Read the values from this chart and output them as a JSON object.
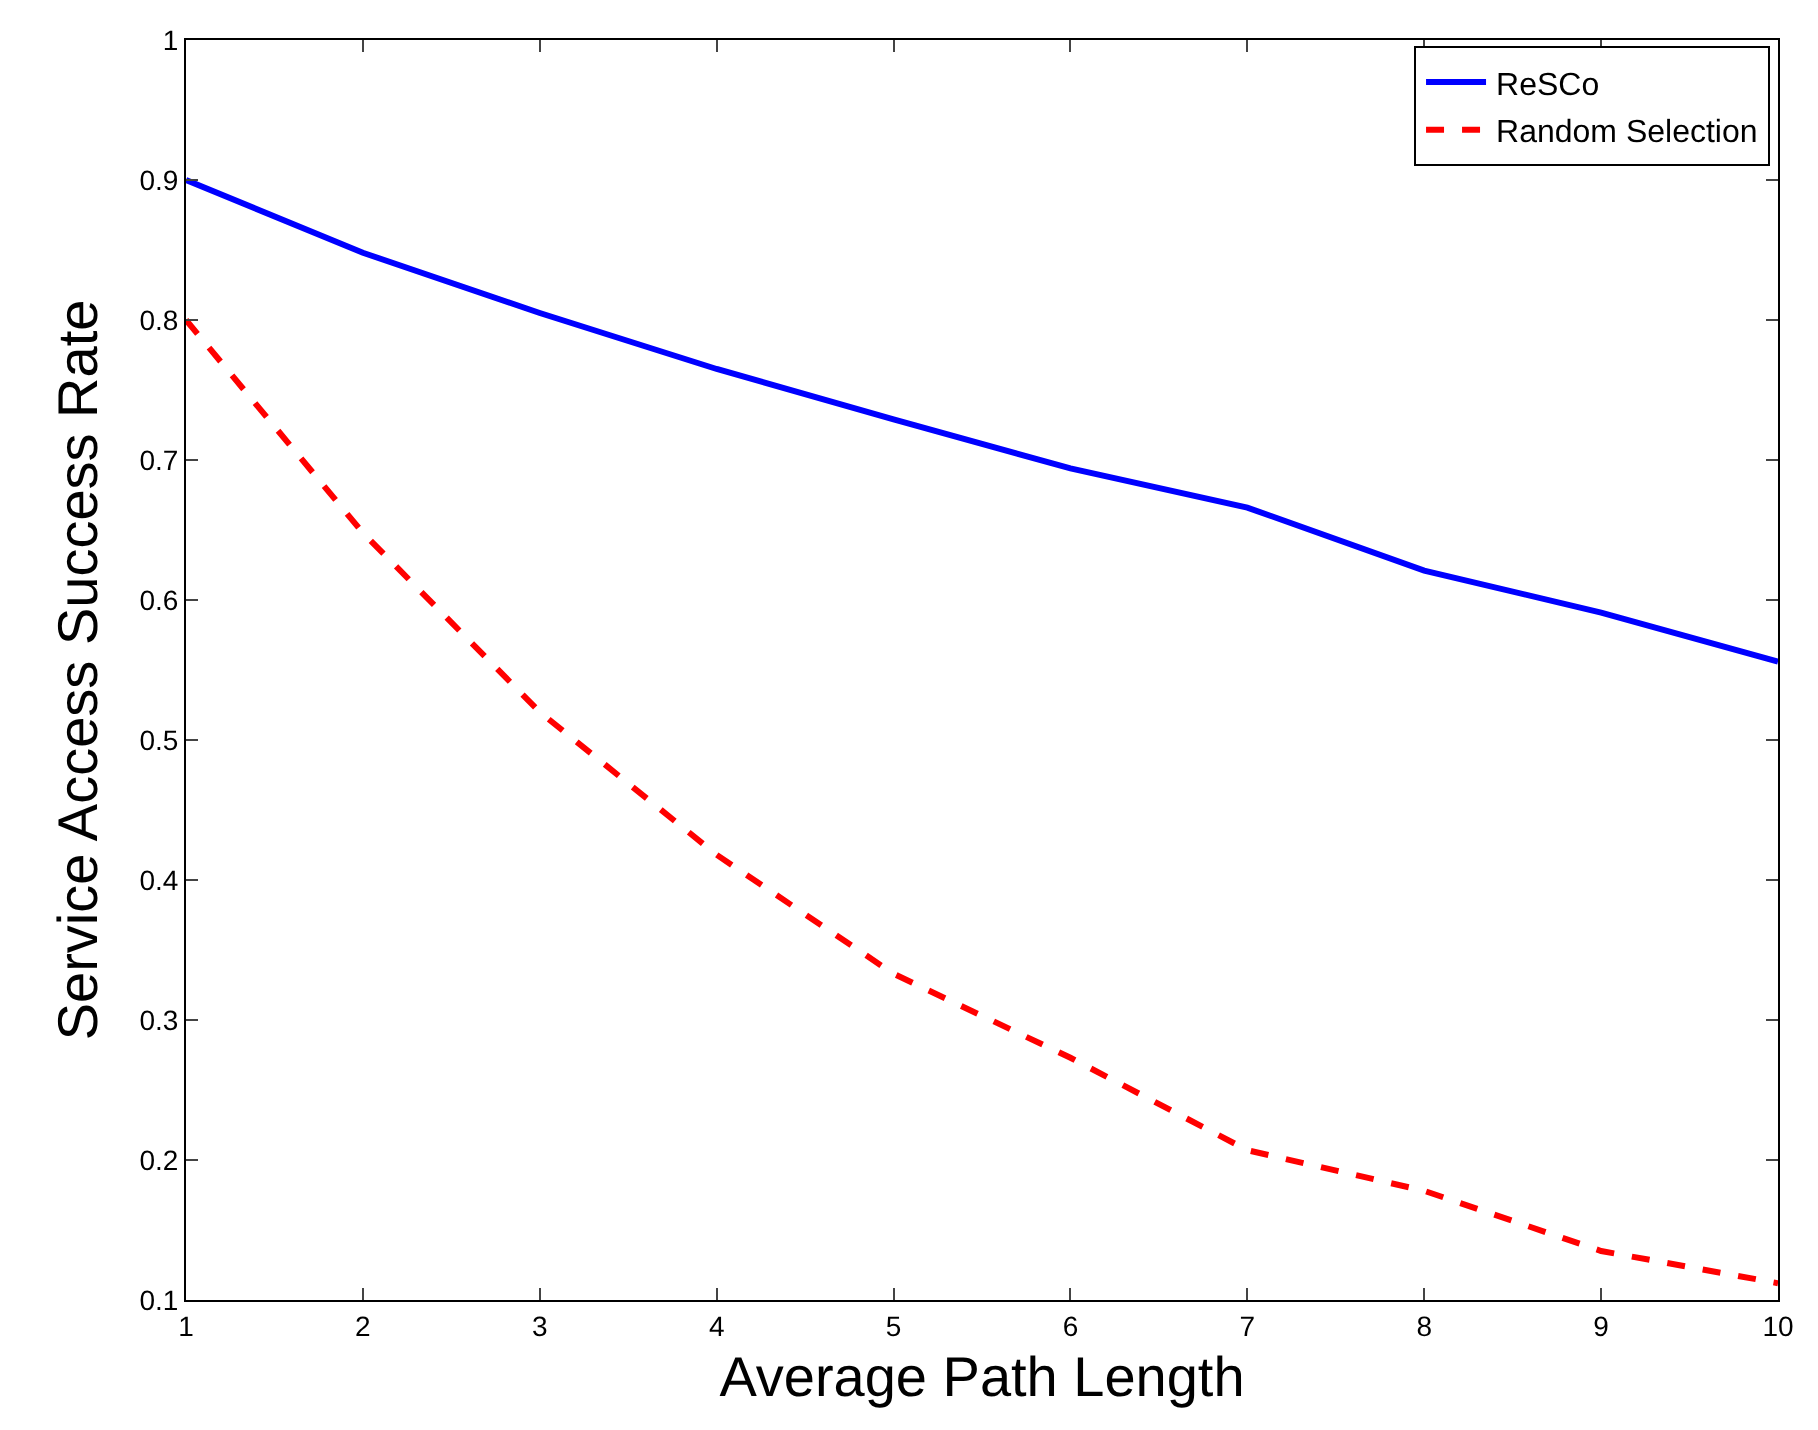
{
  "chart_data": {
    "type": "line",
    "xlabel": "Average Path Length",
    "ylabel": "Service Access Success Rate",
    "x": [
      1,
      2,
      3,
      4,
      5,
      6,
      7,
      8,
      9,
      10
    ],
    "series": [
      {
        "name": "ReSCo",
        "color": "#0000ff",
        "line_style": "solid",
        "values": [
          0.9,
          0.848,
          0.805,
          0.765,
          0.729,
          0.694,
          0.666,
          0.621,
          0.591,
          0.556
        ]
      },
      {
        "name": "Random Selection",
        "color": "#ff0000",
        "line_style": "dashed",
        "values": [
          0.8,
          0.648,
          0.52,
          0.418,
          0.333,
          0.273,
          0.207,
          0.178,
          0.135,
          0.112
        ]
      }
    ],
    "xlim": [
      1,
      10
    ],
    "xticks": [
      1,
      2,
      3,
      4,
      5,
      6,
      7,
      8,
      9,
      10
    ],
    "ylim": [
      0.1,
      1
    ],
    "yticks": [
      0.1,
      0.2,
      0.3,
      0.4,
      0.5,
      0.6,
      0.7,
      0.8,
      0.9,
      1
    ],
    "legend": "top right",
    "marker": "none"
  }
}
